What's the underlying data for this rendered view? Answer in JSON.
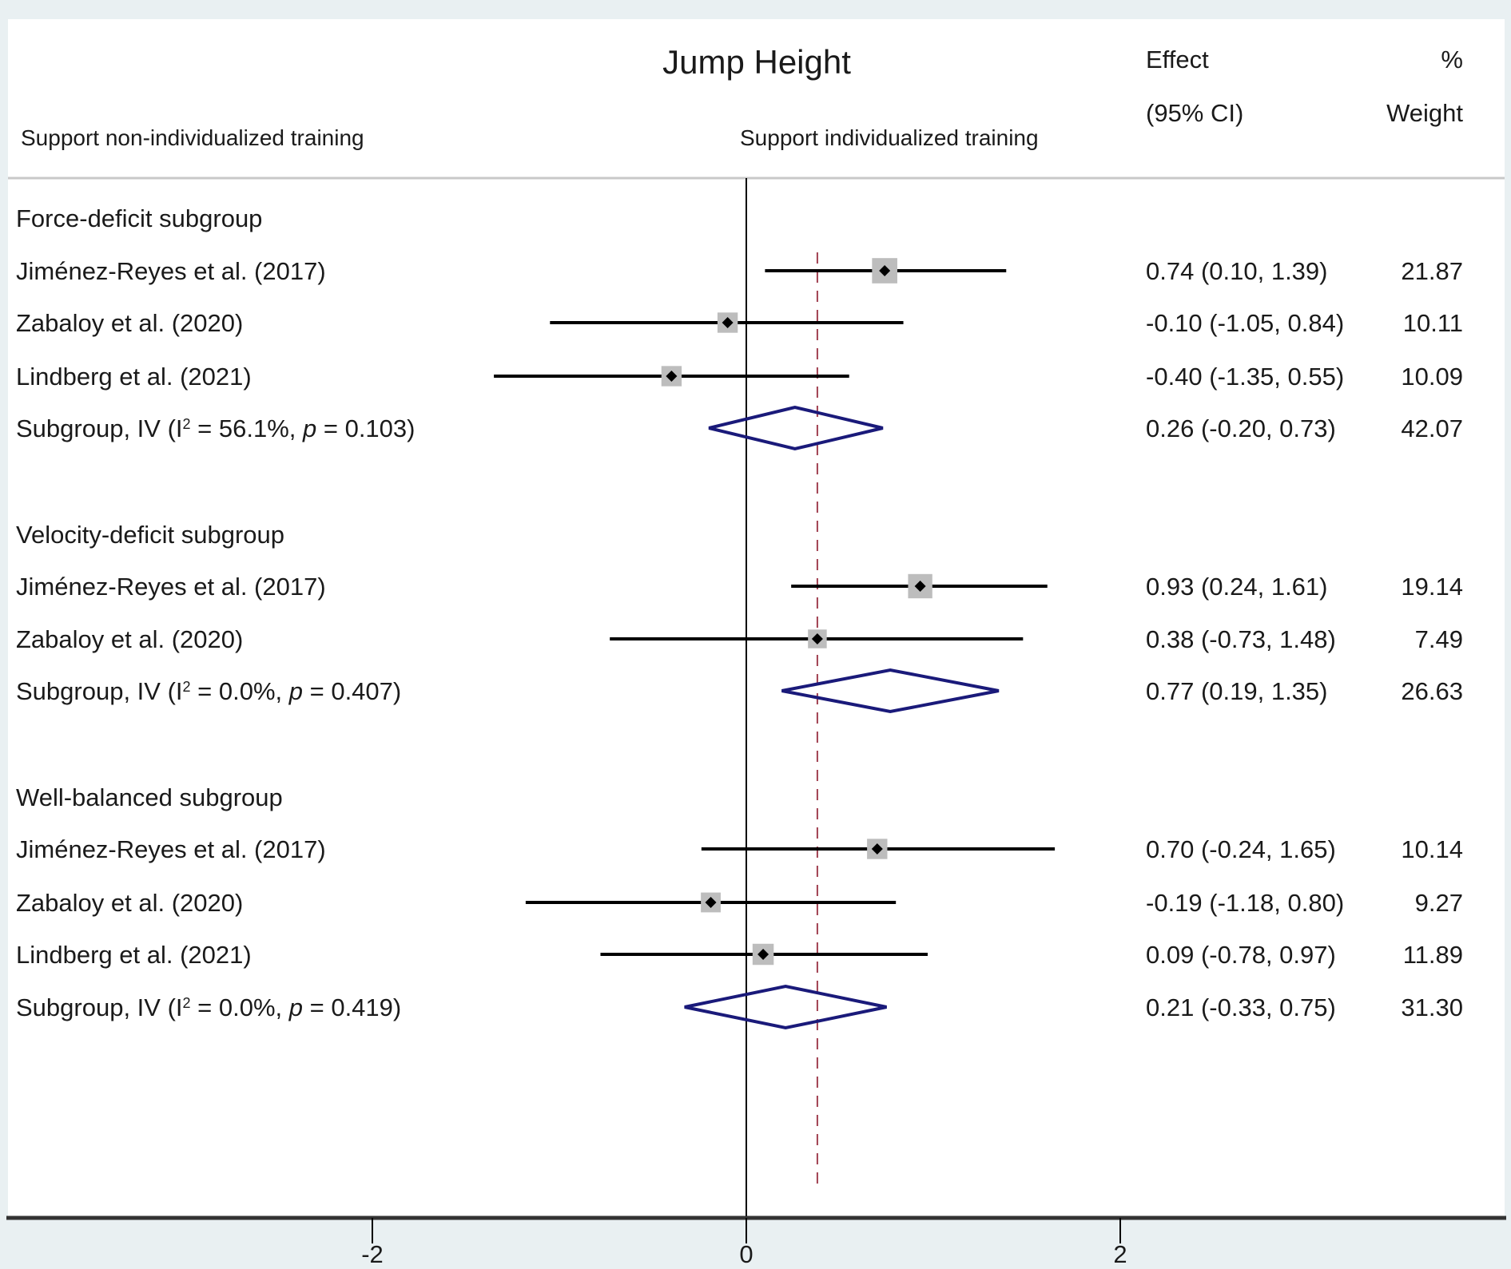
{
  "chart_data": {
    "type": "forest",
    "title": "Jump Height",
    "left_label": "Support non-individualized training",
    "right_label": "Support individualized training",
    "col_effect_header": [
      "Effect",
      "(95% CI)"
    ],
    "col_weight_header": [
      "%",
      "Weight"
    ],
    "x_ticks": [
      -2,
      0,
      2
    ],
    "x_tick_labels": [
      "-2",
      "0",
      "2"
    ],
    "xlim": [
      -4,
      4
    ],
    "null_line": 0,
    "overall_line": 0.38,
    "colors": {
      "diamond": "#1a1a7a",
      "box": "#bdbdbd",
      "overall_line": "#a04050",
      "ci": "#000000"
    },
    "subgroups": [
      {
        "name": "Force-deficit subgroup",
        "studies": [
          {
            "label": "Jiménez-Reyes et al. (2017)",
            "effect": 0.74,
            "lo": 0.1,
            "hi": 1.39,
            "text": "0.74 (0.10, 1.39)",
            "weight": "21.87",
            "w": 21.87
          },
          {
            "label": "Zabaloy et al. (2020)",
            "effect": -0.1,
            "lo": -1.05,
            "hi": 0.84,
            "text": "-0.10 (-1.05, 0.84)",
            "weight": "10.11",
            "w": 10.11
          },
          {
            "label": "Lindberg et al. (2021)",
            "effect": -0.4,
            "lo": -1.35,
            "hi": 0.55,
            "text": "-0.40 (-1.35, 0.55)",
            "weight": "10.09",
            "w": 10.09
          }
        ],
        "summary": {
          "prefix": "Subgroup, IV (I",
          "sup": "2",
          "mid": " = 56.1%, ",
          "p_label": "p",
          "suffix": " = 0.103)",
          "effect": 0.26,
          "lo": -0.2,
          "hi": 0.73,
          "text": "0.26 (-0.20, 0.73)",
          "weight": "42.07"
        }
      },
      {
        "name": "Velocity-deficit subgroup",
        "studies": [
          {
            "label": "Jiménez-Reyes et al. (2017)",
            "effect": 0.93,
            "lo": 0.24,
            "hi": 1.61,
            "text": "0.93 (0.24, 1.61)",
            "weight": "19.14",
            "w": 19.14
          },
          {
            "label": "Zabaloy et al. (2020)",
            "effect": 0.38,
            "lo": -0.73,
            "hi": 1.48,
            "text": "0.38 (-0.73, 1.48)",
            "weight": "7.49",
            "w": 7.49
          }
        ],
        "summary": {
          "prefix": "Subgroup, IV (I",
          "sup": "2",
          "mid": " = 0.0%, ",
          "p_label": "p",
          "suffix": " = 0.407)",
          "effect": 0.77,
          "lo": 0.19,
          "hi": 1.35,
          "text": "0.77 (0.19, 1.35)",
          "weight": "26.63"
        }
      },
      {
        "name": "Well-balanced subgroup",
        "studies": [
          {
            "label": "Jiménez-Reyes et al. (2017)",
            "effect": 0.7,
            "lo": -0.24,
            "hi": 1.65,
            "text": "0.70 (-0.24, 1.65)",
            "weight": "10.14",
            "w": 10.14
          },
          {
            "label": "Zabaloy et al. (2020)",
            "effect": -0.19,
            "lo": -1.18,
            "hi": 0.8,
            "text": "-0.19 (-1.18, 0.80)",
            "weight": "9.27",
            "w": 9.27
          },
          {
            "label": "Lindberg et al. (2021)",
            "effect": 0.09,
            "lo": -0.78,
            "hi": 0.97,
            "text": "0.09 (-0.78, 0.97)",
            "weight": "11.89",
            "w": 11.89
          }
        ],
        "summary": {
          "prefix": "Subgroup, IV (I",
          "sup": "2",
          "mid": " = 0.0%, ",
          "p_label": "p",
          "suffix": " = 0.419)",
          "effect": 0.21,
          "lo": -0.33,
          "hi": 0.75,
          "text": "0.21 (-0.33, 0.75)",
          "weight": "31.30"
        }
      }
    ]
  }
}
